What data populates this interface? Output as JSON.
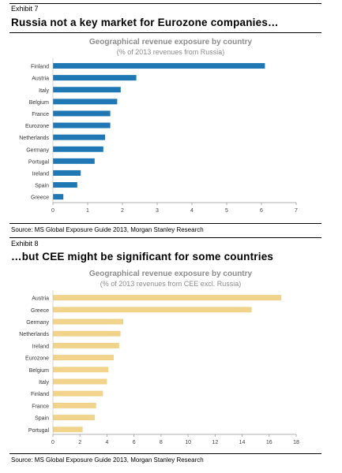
{
  "exhibits": [
    {
      "label": "Exhibit 7",
      "title": "Russia not a key market for Eurozone companies…",
      "source": "Source: MS Global Exposure Guide 2013, Morgan Stanley Research"
    },
    {
      "label": "Exhibit 8",
      "title": "…but CEE might be significant for some countries",
      "source": "Source: MS Global Exposure Guide 2013, Morgan Stanley Research"
    }
  ],
  "chart_data": [
    {
      "type": "bar",
      "orientation": "horizontal",
      "title": "Geographical revenue exposure by country",
      "subtitle": "(% of 2013 revenues from Russia)",
      "categories": [
        "Finland",
        "Austria",
        "Italy",
        "Belgium",
        "France",
        "Eurozone",
        "Netherlands",
        "Germany",
        "Portugal",
        "Ireland",
        "Spain",
        "Greece"
      ],
      "values": [
        6.1,
        2.4,
        1.95,
        1.85,
        1.65,
        1.65,
        1.5,
        1.45,
        1.2,
        0.8,
        0.7,
        0.3
      ],
      "xlim": [
        0,
        7
      ],
      "xticks": [
        0,
        1,
        2,
        3,
        4,
        5,
        6,
        7
      ],
      "grid": false,
      "color": "#1f78b4"
    },
    {
      "type": "bar",
      "orientation": "horizontal",
      "title": "Geographical revenue exposure by country",
      "subtitle": "(% of 2013 revenues from CEE excl. Russia)",
      "categories": [
        "Austria",
        "Greece",
        "Germany",
        "Netherlands",
        "Ireland",
        "Eurozone",
        "Belgium",
        "Italy",
        "Finland",
        "France",
        "Spain",
        "Portugal"
      ],
      "values": [
        16.9,
        14.7,
        5.2,
        5.0,
        4.9,
        4.5,
        4.1,
        4.0,
        3.7,
        3.2,
        3.1,
        2.2
      ],
      "xlim": [
        0,
        18
      ],
      "xticks": [
        0,
        2,
        4,
        6,
        8,
        10,
        12,
        14,
        16,
        18
      ],
      "grid": false,
      "color": "#f2d38c"
    }
  ]
}
